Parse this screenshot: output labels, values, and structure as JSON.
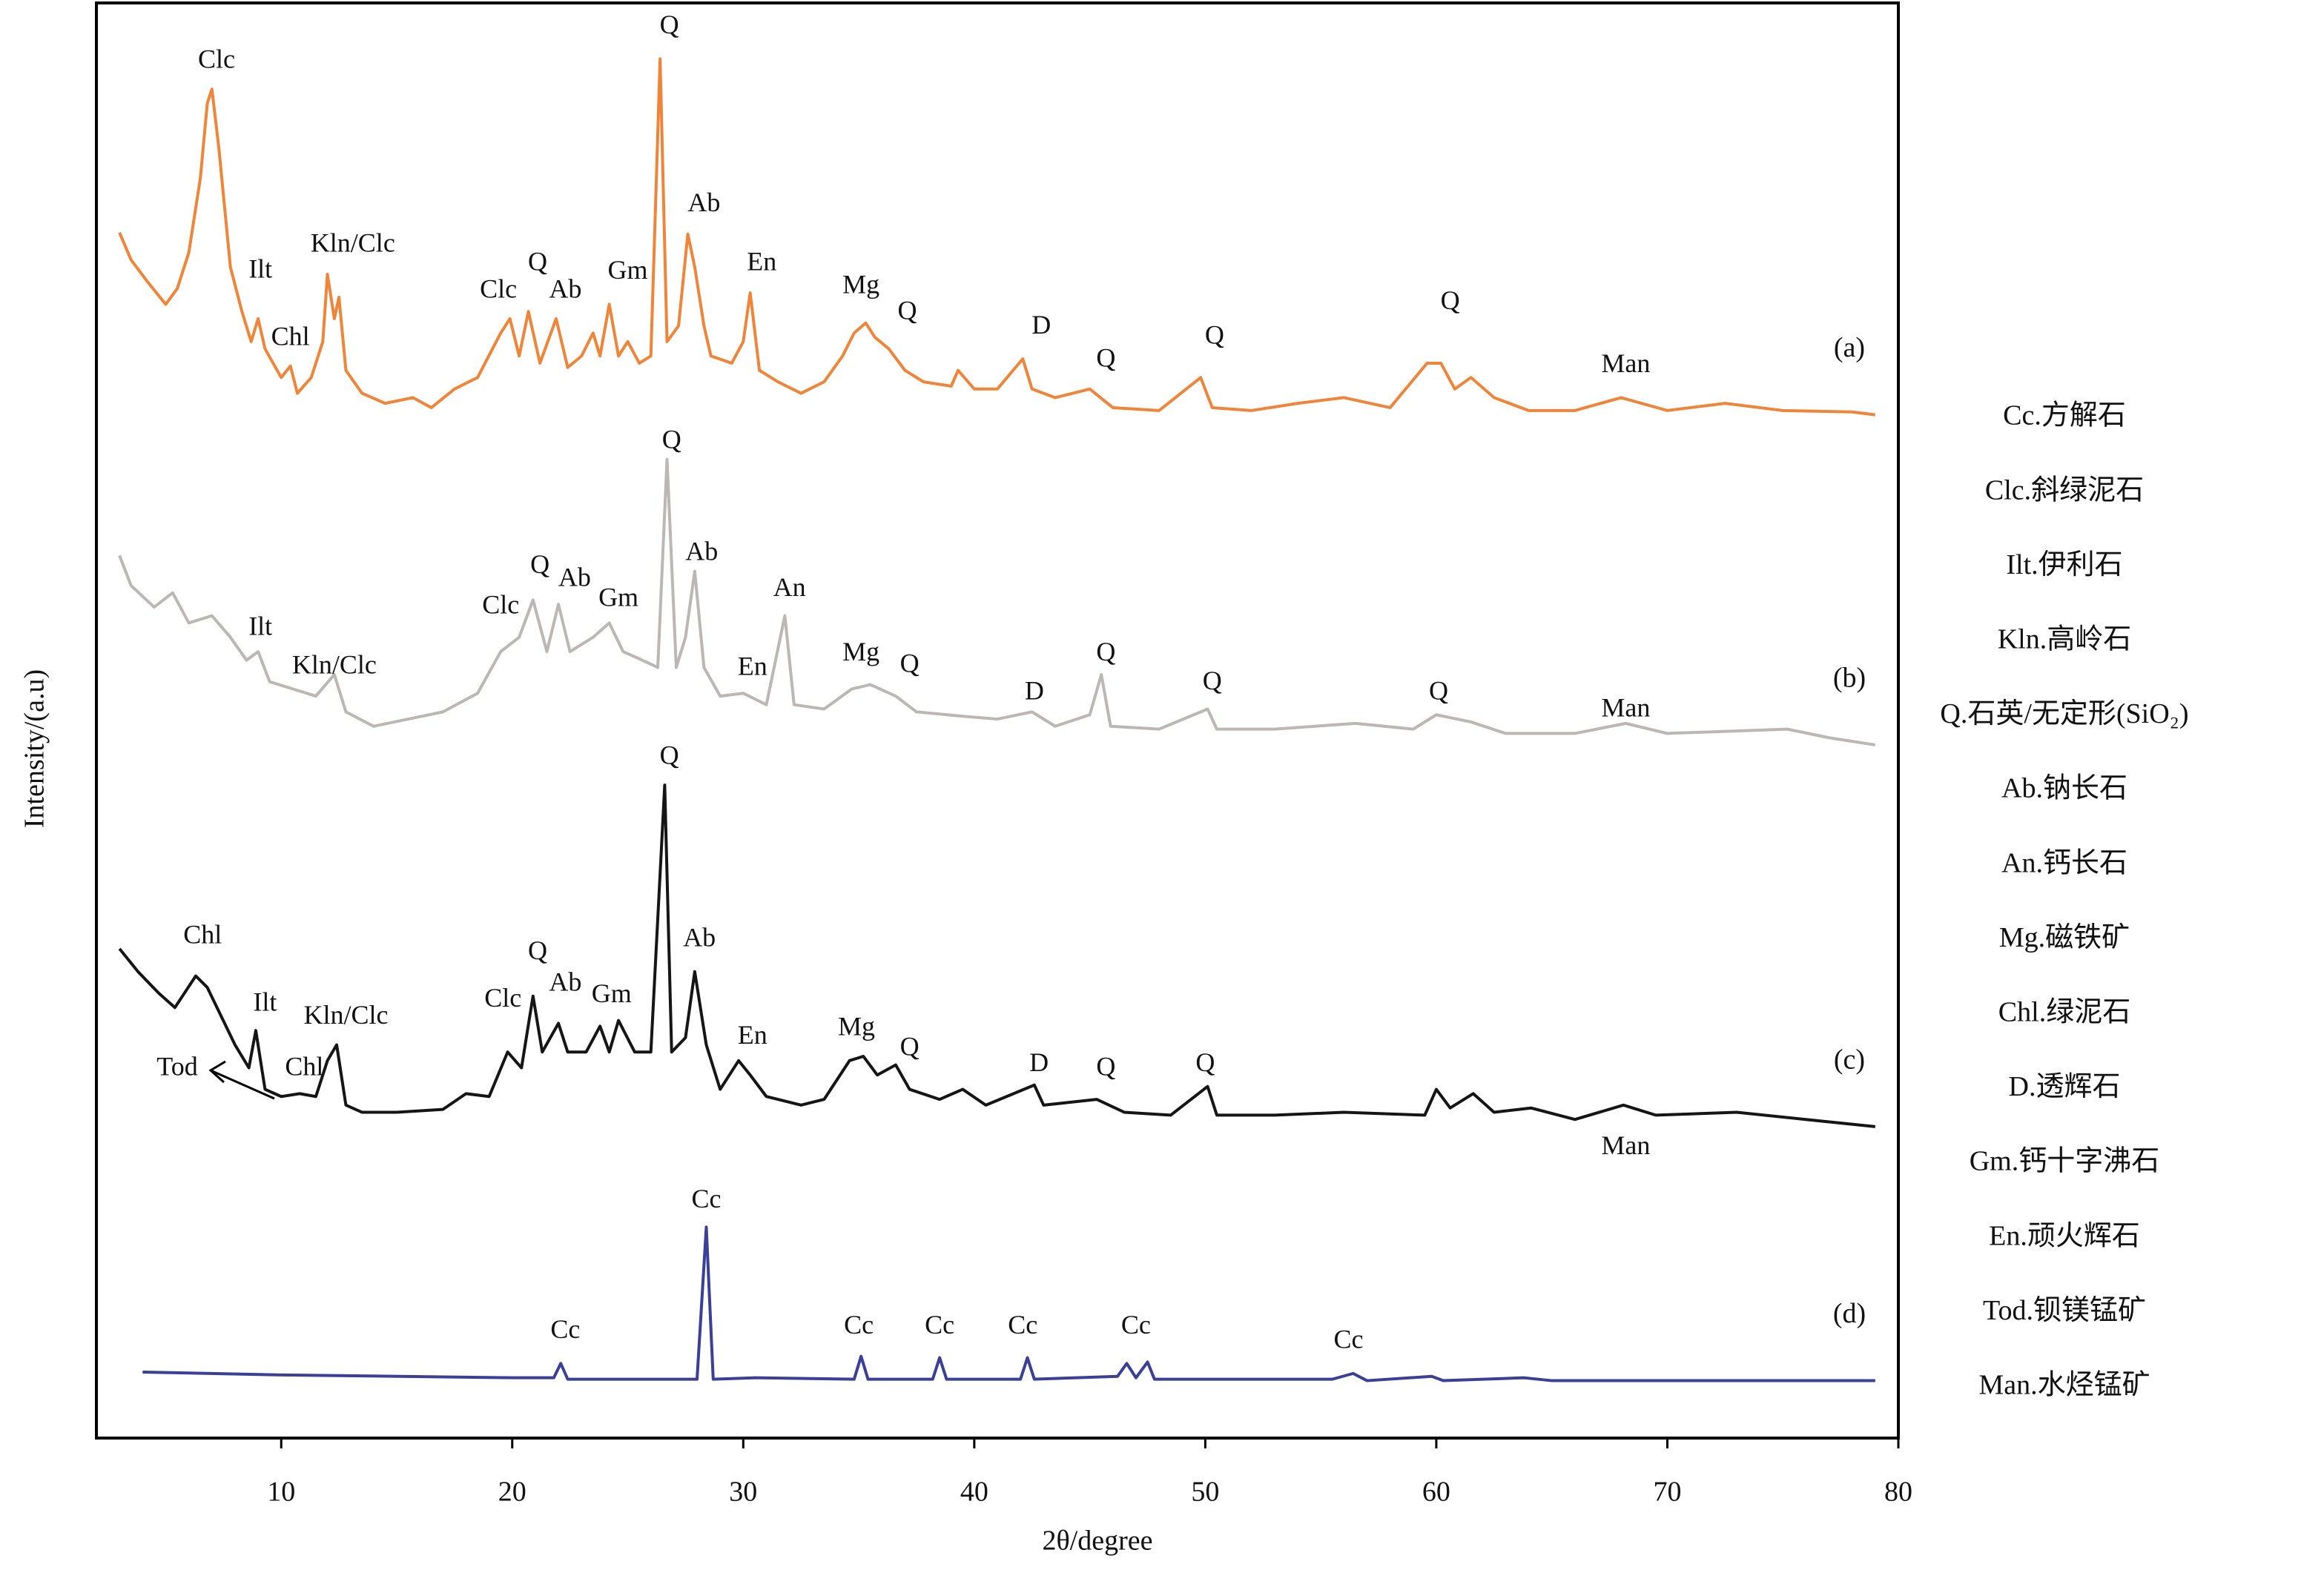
{
  "chart_data": {
    "type": "line",
    "xlabel": "2θ/degree",
    "ylabel": "Intensity/(a.u)",
    "xlim": [
      2,
      80
    ],
    "xticks": [
      10,
      20,
      30,
      40,
      50,
      60,
      70,
      80
    ],
    "ylim": [
      0,
      100
    ],
    "series": [
      {
        "name": "(a)",
        "color": "#f0853a",
        "x": [
          3,
          3.5,
          4.2,
          5,
          5.5,
          6,
          6.5,
          6.8,
          7.0,
          7.3,
          7.8,
          8.3,
          8.7,
          9,
          9.3,
          10,
          10.4,
          10.7,
          11.3,
          11.8,
          12.0,
          12.3,
          12.5,
          12.8,
          13.5,
          14.5,
          15.7,
          16.5,
          17.5,
          18.5,
          19.5,
          19.9,
          20.3,
          20.7,
          21.2,
          21.9,
          22.4,
          23.0,
          23.5,
          23.8,
          24.2,
          24.6,
          25.0,
          25.5,
          26.0,
          26.4,
          26.7,
          27.2,
          27.6,
          27.9,
          28.3,
          28.6,
          29.5,
          30.0,
          30.3,
          30.7,
          31.5,
          32.5,
          33.5,
          34.3,
          34.8,
          35.3,
          35.7,
          36.3,
          37.0,
          37.8,
          39.0,
          39.3,
          40.0,
          41.0,
          42.1,
          42.5,
          43.5,
          45,
          46,
          48,
          49.8,
          50.3,
          52,
          54,
          56,
          58,
          59.6,
          60.2,
          60.8,
          61.5,
          62.5,
          64,
          66,
          68,
          70,
          72.5,
          75,
          78,
          79
        ],
        "values": [
          84.0,
          82.1,
          80.6,
          79.0,
          80.1,
          82.6,
          87.8,
          93.0,
          94.0,
          89.9,
          81.6,
          78.5,
          76.4,
          78.0,
          75.9,
          73.9,
          74.7,
          72.8,
          73.9,
          76.4,
          81.1,
          78.0,
          79.5,
          74.4,
          72.8,
          72.1,
          72.5,
          71.8,
          73.1,
          73.9,
          77.0,
          78.0,
          75.4,
          78.5,
          74.9,
          78.0,
          74.6,
          75.4,
          77.0,
          75.4,
          79.0,
          75.4,
          76.4,
          74.9,
          75.4,
          96.1,
          76.4,
          77.5,
          83.9,
          81.6,
          77.5,
          75.4,
          74.9,
          76.4,
          79.8,
          74.4,
          73.6,
          72.8,
          73.6,
          75.4,
          77.0,
          77.7,
          76.7,
          75.9,
          74.4,
          73.6,
          73.3,
          74.4,
          73.1,
          73.1,
          75.2,
          73.1,
          72.5,
          73.1,
          71.8,
          71.6,
          73.9,
          71.8,
          71.6,
          72.1,
          72.5,
          71.8,
          74.9,
          74.9,
          73.1,
          73.9,
          72.5,
          71.6,
          71.6,
          72.5,
          71.6,
          72.1,
          71.6,
          71.5,
          71.3
        ]
      },
      {
        "name": "(b)",
        "color": "#bcb7b4",
        "x": [
          3,
          3.5,
          4.5,
          5.3,
          6,
          7,
          7.8,
          8.5,
          9.0,
          9.5,
          10.5,
          11.5,
          12.3,
          12.8,
          14,
          15.5,
          17,
          18.5,
          19.5,
          20.3,
          20.9,
          21.5,
          22.0,
          22.5,
          23.5,
          24.2,
          24.8,
          25.5,
          26.3,
          26.7,
          27.1,
          27.5,
          27.9,
          28.3,
          29.0,
          30.0,
          31.0,
          31.8,
          32.2,
          33.5,
          34.7,
          35.5,
          36.6,
          37.5,
          39.5,
          41,
          42.5,
          43.5,
          45.0,
          45.5,
          45.9,
          48,
          50.1,
          50.5,
          53,
          56.5,
          59,
          60.0,
          61.5,
          63,
          66,
          68.2,
          70,
          75.2,
          77,
          79
        ],
        "values": [
          61.5,
          59.4,
          57.9,
          58.9,
          56.8,
          57.3,
          55.8,
          54.2,
          54.8,
          52.7,
          52.2,
          51.7,
          53.2,
          50.6,
          49.6,
          50.1,
          50.6,
          51.9,
          54.8,
          55.8,
          58.4,
          54.8,
          58.1,
          54.8,
          55.8,
          56.8,
          54.8,
          54.3,
          53.7,
          68.2,
          53.7,
          55.8,
          60.4,
          53.7,
          51.7,
          51.9,
          51.1,
          57.3,
          51.1,
          50.8,
          52.2,
          52.5,
          51.7,
          50.6,
          50.3,
          50.1,
          50.6,
          49.6,
          50.4,
          53.2,
          49.6,
          49.4,
          50.8,
          49.4,
          49.4,
          49.8,
          49.4,
          50.4,
          49.9,
          49.1,
          49.1,
          49.8,
          49.1,
          49.4,
          48.8,
          48.3
        ]
      },
      {
        "name": "(c)",
        "color": "#151515",
        "x": [
          3,
          3.8,
          4.7,
          5.4,
          6.3,
          6.8,
          7.4,
          8.0,
          8.6,
          8.9,
          9.3,
          10.0,
          10.8,
          11.5,
          12.0,
          12.4,
          12.8,
          13.5,
          15,
          17,
          18,
          19,
          19.8,
          20.4,
          20.9,
          21.3,
          22.0,
          22.4,
          23.2,
          23.8,
          24.2,
          24.6,
          25.3,
          26.0,
          26.6,
          26.9,
          27.5,
          27.9,
          28.4,
          29.0,
          29.8,
          30.3,
          31.0,
          32.5,
          33.5,
          34.6,
          35.2,
          35.8,
          36.6,
          37.2,
          38.5,
          39.5,
          40.5,
          42.6,
          43.0,
          45.3,
          46.5,
          48.5,
          50.1,
          50.5,
          53,
          56,
          59.5,
          60.0,
          60.6,
          61.6,
          62.5,
          64.1,
          66,
          68.1,
          69.5,
          73,
          76,
          79
        ],
        "values": [
          34.1,
          32.5,
          31.0,
          30.0,
          32.2,
          31.4,
          29.4,
          27.4,
          25.8,
          28.4,
          24.3,
          23.8,
          24.0,
          23.8,
          26.3,
          27.4,
          23.2,
          22.7,
          22.7,
          22.9,
          24.0,
          23.8,
          26.9,
          25.8,
          30.8,
          26.9,
          28.9,
          26.9,
          26.9,
          28.7,
          26.9,
          29.1,
          26.9,
          26.9,
          45.5,
          26.9,
          27.9,
          32.5,
          27.4,
          24.3,
          26.3,
          25.3,
          23.8,
          23.2,
          23.6,
          26.3,
          26.6,
          25.3,
          26.0,
          24.3,
          23.6,
          24.3,
          23.2,
          24.6,
          23.2,
          23.6,
          22.7,
          22.5,
          24.5,
          22.5,
          22.5,
          22.7,
          22.5,
          24.3,
          23.0,
          24.0,
          22.7,
          23.0,
          22.2,
          23.2,
          22.5,
          22.7,
          22.2,
          21.7
        ]
      },
      {
        "name": "(d)",
        "color": "#3a3f98",
        "x": [
          4,
          10,
          20,
          21.8,
          22.1,
          22.4,
          28.0,
          28.4,
          28.7,
          30.5,
          34.8,
          35.1,
          35.4,
          38.2,
          38.5,
          38.8,
          42.0,
          42.3,
          42.6,
          46.2,
          46.6,
          47.0,
          47.5,
          47.8,
          55.5,
          56.4,
          57,
          59.8,
          60.3,
          63.8,
          65,
          79
        ],
        "values": [
          4.6,
          4.4,
          4.2,
          4.2,
          5.2,
          4.1,
          4.1,
          14.7,
          4.1,
          4.2,
          4.1,
          5.7,
          4.1,
          4.1,
          5.6,
          4.1,
          4.1,
          5.6,
          4.1,
          4.3,
          5.2,
          4.2,
          5.3,
          4.1,
          4.1,
          4.5,
          4.0,
          4.3,
          4.0,
          4.2,
          4.0,
          4.0
        ]
      }
    ],
    "annotations": [
      {
        "text": "Clc",
        "x": 7.2,
        "y": 95.9
      },
      {
        "text": "Ilt",
        "x": 9.1,
        "y": 81.3
      },
      {
        "text": "Kln/Clc",
        "x": 13.1,
        "y": 83.1
      },
      {
        "text": "Chl",
        "x": 10.4,
        "y": 76.6
      },
      {
        "text": "Clc",
        "x": 19.4,
        "y": 79.9
      },
      {
        "text": "Q",
        "x": 21.1,
        "y": 81.8
      },
      {
        "text": "Ab",
        "x": 22.3,
        "y": 79.9
      },
      {
        "text": "Gm",
        "x": 25.0,
        "y": 81.2
      },
      {
        "text": "Q",
        "x": 26.8,
        "y": 98.3
      },
      {
        "text": "Ab",
        "x": 28.3,
        "y": 85.9
      },
      {
        "text": "En",
        "x": 30.8,
        "y": 81.8
      },
      {
        "text": "Mg",
        "x": 35.1,
        "y": 80.2
      },
      {
        "text": "Q",
        "x": 37.1,
        "y": 78.4
      },
      {
        "text": "D",
        "x": 42.9,
        "y": 77.4
      },
      {
        "text": "Q",
        "x": 45.7,
        "y": 75.1
      },
      {
        "text": "Q",
        "x": 50.4,
        "y": 76.7
      },
      {
        "text": "Q",
        "x": 60.6,
        "y": 79.1
      },
      {
        "text": "Man",
        "x": 68.2,
        "y": 74.7
      },
      {
        "text": "Q",
        "x": 26.9,
        "y": 69.4
      },
      {
        "text": "Ilt",
        "x": 9.1,
        "y": 56.4
      },
      {
        "text": "Kln/Clc",
        "x": 12.3,
        "y": 53.7
      },
      {
        "text": "Clc",
        "x": 19.5,
        "y": 57.9
      },
      {
        "text": "Q",
        "x": 21.2,
        "y": 60.7
      },
      {
        "text": "Ab",
        "x": 22.7,
        "y": 59.8
      },
      {
        "text": "Gm",
        "x": 24.6,
        "y": 58.4
      },
      {
        "text": "Ab",
        "x": 28.2,
        "y": 61.6
      },
      {
        "text": "An",
        "x": 32.0,
        "y": 59.1
      },
      {
        "text": "En",
        "x": 30.4,
        "y": 53.6
      },
      {
        "text": "Mg",
        "x": 35.1,
        "y": 54.6
      },
      {
        "text": "Q",
        "x": 37.2,
        "y": 53.8
      },
      {
        "text": "D",
        "x": 42.6,
        "y": 51.9
      },
      {
        "text": "Q",
        "x": 45.7,
        "y": 54.6
      },
      {
        "text": "Q",
        "x": 50.3,
        "y": 52.6
      },
      {
        "text": "Q",
        "x": 60.1,
        "y": 51.9
      },
      {
        "text": "Man",
        "x": 68.2,
        "y": 50.7
      },
      {
        "text": "Q",
        "x": 26.8,
        "y": 47.4
      },
      {
        "text": "Chl",
        "x": 6.6,
        "y": 34.9
      },
      {
        "text": "Ilt",
        "x": 9.3,
        "y": 30.2
      },
      {
        "text": "Kln/Clc",
        "x": 12.8,
        "y": 29.3
      },
      {
        "text": "Chl",
        "x": 11.0,
        "y": 25.7
      },
      {
        "text": "Tod",
        "x": 5.5,
        "y": 25.7
      },
      {
        "text": "Clc",
        "x": 19.6,
        "y": 30.5
      },
      {
        "text": "Q",
        "x": 21.1,
        "y": 33.8
      },
      {
        "text": "Ab",
        "x": 22.3,
        "y": 31.6
      },
      {
        "text": "Gm",
        "x": 24.3,
        "y": 30.8
      },
      {
        "text": "Ab",
        "x": 28.1,
        "y": 34.7
      },
      {
        "text": "En",
        "x": 30.4,
        "y": 27.9
      },
      {
        "text": "Mg",
        "x": 34.9,
        "y": 28.5
      },
      {
        "text": "Q",
        "x": 37.2,
        "y": 27.1
      },
      {
        "text": "D",
        "x": 42.8,
        "y": 26.0
      },
      {
        "text": "Q",
        "x": 45.7,
        "y": 25.7
      },
      {
        "text": "Q",
        "x": 50.0,
        "y": 26.0
      },
      {
        "text": "Man",
        "x": 68.2,
        "y": 20.2
      },
      {
        "text": "Cc",
        "x": 28.4,
        "y": 16.5
      },
      {
        "text": "Cc",
        "x": 22.3,
        "y": 7.4
      },
      {
        "text": "Cc",
        "x": 35.0,
        "y": 7.7
      },
      {
        "text": "Cc",
        "x": 38.5,
        "y": 7.7
      },
      {
        "text": "Cc",
        "x": 42.1,
        "y": 7.7
      },
      {
        "text": "Cc",
        "x": 47.0,
        "y": 7.7
      },
      {
        "text": "Cc",
        "x": 56.2,
        "y": 6.7
      }
    ],
    "legend": [
      "Cc.方解石",
      "Clc.斜绿泥石",
      "Ilt.伊利石",
      "Kln.高岭石",
      "Q.石英/无定形(SiO₂)",
      "Ab.钠长石",
      "An.钙长石",
      "Mg.磁铁矿",
      "Chl.绿泥石",
      "D.透辉石",
      "Gm.钙十字沸石",
      "En.顽火辉石",
      "Tod.钡镁锰矿",
      "Man.水烃锰矿"
    ]
  }
}
